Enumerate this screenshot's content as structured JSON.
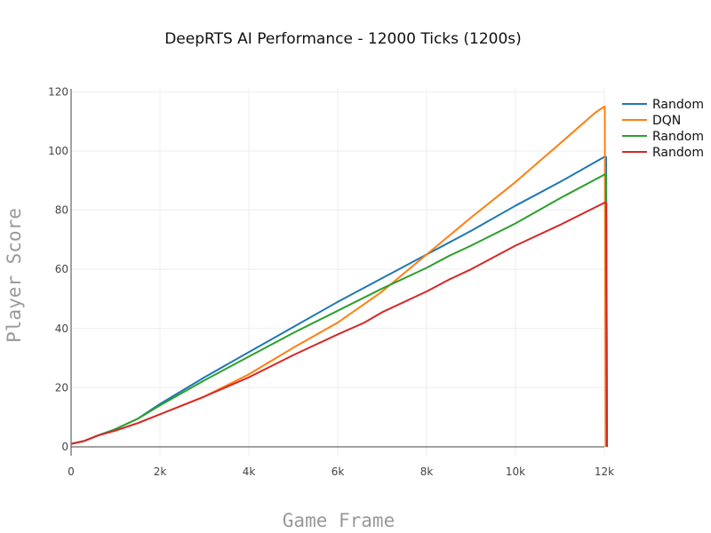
{
  "chart_data": {
    "type": "line",
    "title": "DeepRTS AI Performance - 12000 Ticks (1200s)",
    "xlabel": "Game Frame",
    "ylabel": "Player Score",
    "xlim": [
      0,
      12000
    ],
    "ylim": [
      -3,
      121
    ],
    "x_ticks": [
      0,
      2000,
      4000,
      6000,
      8000,
      10000,
      12000
    ],
    "x_tick_labels": [
      "0",
      "2k",
      "4k",
      "6k",
      "8k",
      "10k",
      "12k"
    ],
    "y_ticks": [
      0,
      20,
      40,
      60,
      80,
      100,
      120
    ],
    "y_tick_labels": [
      "0",
      "20",
      "40",
      "60",
      "80",
      "100",
      "120"
    ],
    "grid": true,
    "legend_position": "top-right",
    "series": [
      {
        "name": "Random",
        "color": "#1f77b4",
        "points": [
          [
            0,
            1
          ],
          [
            300,
            2
          ],
          [
            600,
            3.8
          ],
          [
            1000,
            6
          ],
          [
            1500,
            9.5
          ],
          [
            2000,
            14.5
          ],
          [
            3000,
            23.5
          ],
          [
            4000,
            32
          ],
          [
            5000,
            40.5
          ],
          [
            6000,
            49
          ],
          [
            7000,
            57
          ],
          [
            8000,
            65
          ],
          [
            9000,
            73
          ],
          [
            10000,
            81.5
          ],
          [
            11000,
            89.5
          ],
          [
            12000,
            98
          ],
          [
            12040,
            98
          ],
          [
            12045,
            70
          ],
          [
            12060,
            0
          ]
        ]
      },
      {
        "name": "DQN",
        "color": "#ff7f0e",
        "points": [
          [
            0,
            1
          ],
          [
            300,
            2
          ],
          [
            600,
            3.8
          ],
          [
            1000,
            5.5
          ],
          [
            1500,
            8
          ],
          [
            2000,
            11
          ],
          [
            3000,
            17
          ],
          [
            4000,
            24.5
          ],
          [
            4500,
            29
          ],
          [
            5000,
            33.5
          ],
          [
            6000,
            42
          ],
          [
            7000,
            52.5
          ],
          [
            8000,
            65
          ],
          [
            9000,
            77.5
          ],
          [
            10000,
            89.5
          ],
          [
            11000,
            102.5
          ],
          [
            11800,
            113
          ],
          [
            12000,
            115
          ],
          [
            12010,
            115
          ],
          [
            12015,
            80
          ],
          [
            12030,
            0
          ]
        ]
      },
      {
        "name": "Random",
        "color": "#2ca02c",
        "points": [
          [
            0,
            1
          ],
          [
            300,
            2
          ],
          [
            600,
            3.8
          ],
          [
            1000,
            6
          ],
          [
            1500,
            9.5
          ],
          [
            2000,
            14
          ],
          [
            3000,
            22.5
          ],
          [
            4000,
            30.5
          ],
          [
            5000,
            38.5
          ],
          [
            6000,
            46
          ],
          [
            7000,
            53.5
          ],
          [
            8000,
            60.5
          ],
          [
            8500,
            64.5
          ],
          [
            9000,
            68
          ],
          [
            10000,
            75.5
          ],
          [
            11000,
            84
          ],
          [
            12000,
            92
          ],
          [
            12035,
            92
          ],
          [
            12040,
            65
          ],
          [
            12055,
            0
          ]
        ]
      },
      {
        "name": "Random",
        "color": "#d62728",
        "points": [
          [
            0,
            1
          ],
          [
            300,
            2
          ],
          [
            600,
            3.8
          ],
          [
            1000,
            5.5
          ],
          [
            1500,
            8
          ],
          [
            2000,
            11
          ],
          [
            3000,
            17
          ],
          [
            4000,
            23.5
          ],
          [
            5000,
            31
          ],
          [
            6000,
            38
          ],
          [
            6600,
            42
          ],
          [
            7000,
            45.5
          ],
          [
            8000,
            52.5
          ],
          [
            8500,
            56.5
          ],
          [
            9000,
            60
          ],
          [
            10000,
            68
          ],
          [
            11000,
            75
          ],
          [
            12000,
            82.5
          ],
          [
            12045,
            82.5
          ],
          [
            12050,
            60
          ],
          [
            12060,
            0
          ]
        ]
      }
    ]
  }
}
